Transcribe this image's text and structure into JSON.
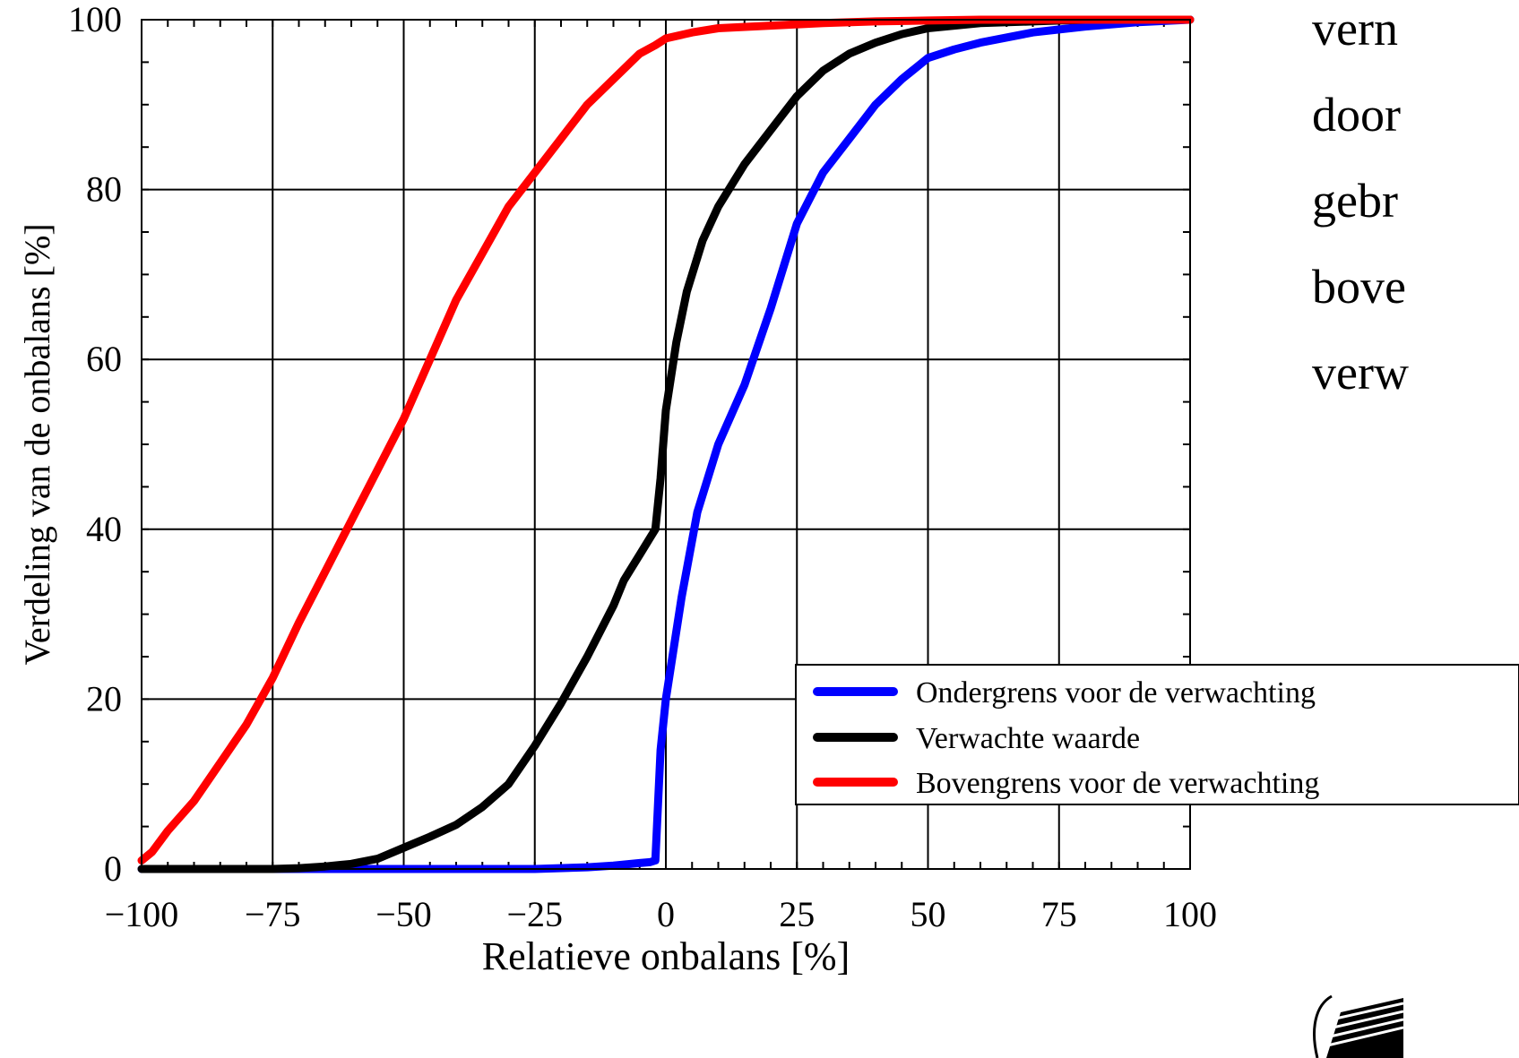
{
  "chart_data": {
    "type": "line",
    "xlabel": "Relatieve onbalans [%]",
    "ylabel": "Verdeling van de onbalans [%]",
    "xlim": [
      -100,
      100
    ],
    "ylim": [
      0,
      100
    ],
    "x_ticks": [
      -100,
      -75,
      -50,
      -25,
      0,
      25,
      50,
      75,
      100
    ],
    "x_tick_labels": [
      "−100",
      "−75",
      "−50",
      "−25",
      "0",
      "25",
      "50",
      "75",
      "100"
    ],
    "y_ticks": [
      0,
      20,
      40,
      60,
      80,
      100
    ],
    "y_tick_labels": [
      "0",
      "20",
      "40",
      "60",
      "80",
      "100"
    ],
    "grid": true,
    "legend_position": "bottom-right",
    "series": [
      {
        "name": "Ondergrens voor de verwachting",
        "color": "#0000ff",
        "x": [
          -100,
          -75,
          -50,
          -25,
          -15,
          -10,
          -5,
          -3,
          -2,
          -1,
          0,
          3,
          6,
          10,
          15,
          20,
          25,
          30,
          35,
          40,
          45,
          50,
          55,
          60,
          70,
          80,
          90,
          100
        ],
        "y": [
          0,
          0,
          0,
          0,
          0.2,
          0.4,
          0.7,
          0.8,
          1,
          14,
          20,
          32,
          42,
          50,
          57,
          66,
          76,
          82,
          86,
          90,
          93,
          95.5,
          96.5,
          97.3,
          98.5,
          99.2,
          99.7,
          100
        ]
      },
      {
        "name": "Verwachte waarde",
        "color": "#000000",
        "x": [
          -100,
          -75,
          -70,
          -65,
          -60,
          -55,
          -50,
          -45,
          -40,
          -35,
          -30,
          -25,
          -20,
          -15,
          -10,
          -8,
          -5,
          -3,
          -2,
          -1,
          0,
          2,
          4,
          7,
          10,
          15,
          20,
          25,
          30,
          35,
          40,
          45,
          50,
          60,
          70,
          80,
          90,
          100
        ],
        "y": [
          0,
          0,
          0.1,
          0.3,
          0.6,
          1.2,
          2.5,
          3.8,
          5.2,
          7.3,
          10,
          14.5,
          19.5,
          25,
          31,
          34,
          37,
          39,
          40,
          46,
          54,
          62,
          68,
          74,
          78,
          83,
          87,
          91,
          94,
          96,
          97.3,
          98.3,
          99,
          99.6,
          99.8,
          100,
          100,
          100
        ]
      },
      {
        "name": "Bovengrens voor de verwachting",
        "color": "#ff0000",
        "x": [
          -100,
          -98,
          -95,
          -90,
          -85,
          -80,
          -75,
          -70,
          -65,
          -60,
          -55,
          -50,
          -45,
          -40,
          -35,
          -30,
          -25,
          -20,
          -15,
          -10,
          -5,
          -2,
          0,
          5,
          10,
          20,
          30,
          40,
          50,
          60,
          70,
          80,
          90,
          100
        ],
        "y": [
          1,
          2,
          4.5,
          8,
          12.5,
          17,
          22.5,
          29,
          35,
          41,
          47,
          53,
          60,
          67,
          72.5,
          78,
          82,
          86,
          90,
          93,
          96,
          97,
          97.8,
          98.5,
          99,
          99.3,
          99.6,
          99.8,
          99.9,
          100,
          100,
          100,
          100,
          100
        ]
      }
    ]
  },
  "side_text": {
    "line1": "vern",
    "line2": "door",
    "line3": "gebr",
    "line4": "bove",
    "line5": "verw"
  }
}
